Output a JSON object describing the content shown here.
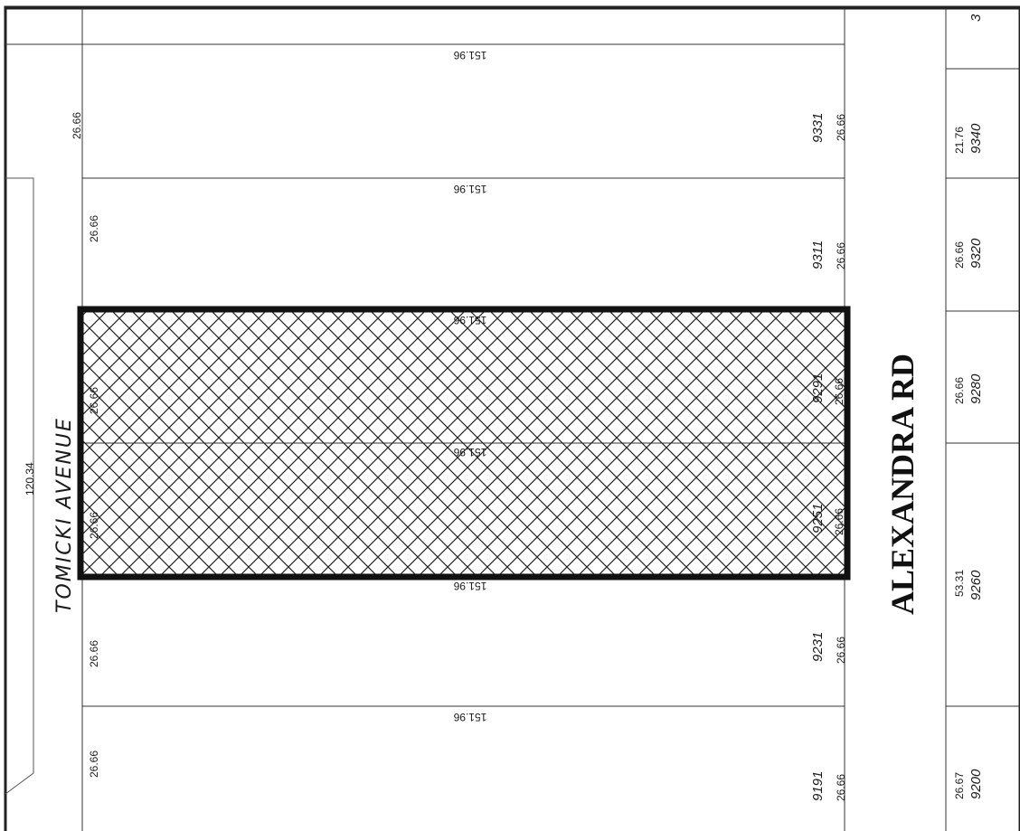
{
  "map": {
    "roads": {
      "alexandra": "ALEXANDRA RD",
      "tomicki": "TOMICKI AVENUE",
      "tomicki_width": "120.34"
    },
    "lots_west": [
      {
        "front": "26.66",
        "side": "26.66",
        "number": "9331",
        "depth": "151.96"
      },
      {
        "front": "26.66",
        "side": "26.66",
        "number": "9311",
        "depth": "151.96"
      },
      {
        "front": "26.66",
        "side": "26.66",
        "number": "9291",
        "depth": "151.96",
        "highlighted": true
      },
      {
        "front": "26.66",
        "side": "26.66",
        "number": "9251",
        "depth": "151.96",
        "highlighted": true
      },
      {
        "front": "26.66",
        "side": "26.66",
        "number": "9231",
        "depth": "151.96"
      },
      {
        "front": "26.66",
        "side": "26.66",
        "number": "9191",
        "depth": "151.96"
      }
    ],
    "lots_east": [
      {
        "number": "3",
        "width": "",
        "partial": true
      },
      {
        "number": "9340",
        "width": "21.76"
      },
      {
        "number": "9320",
        "width": "26.66"
      },
      {
        "number": "9280",
        "width": "26.66"
      },
      {
        "number": "9260",
        "width": "53.31"
      },
      {
        "number": "9200",
        "width": "26.67"
      }
    ],
    "colors": {
      "ink": "#1a1a1a",
      "highlight_border": "#111111",
      "background": "#ffffff"
    }
  }
}
